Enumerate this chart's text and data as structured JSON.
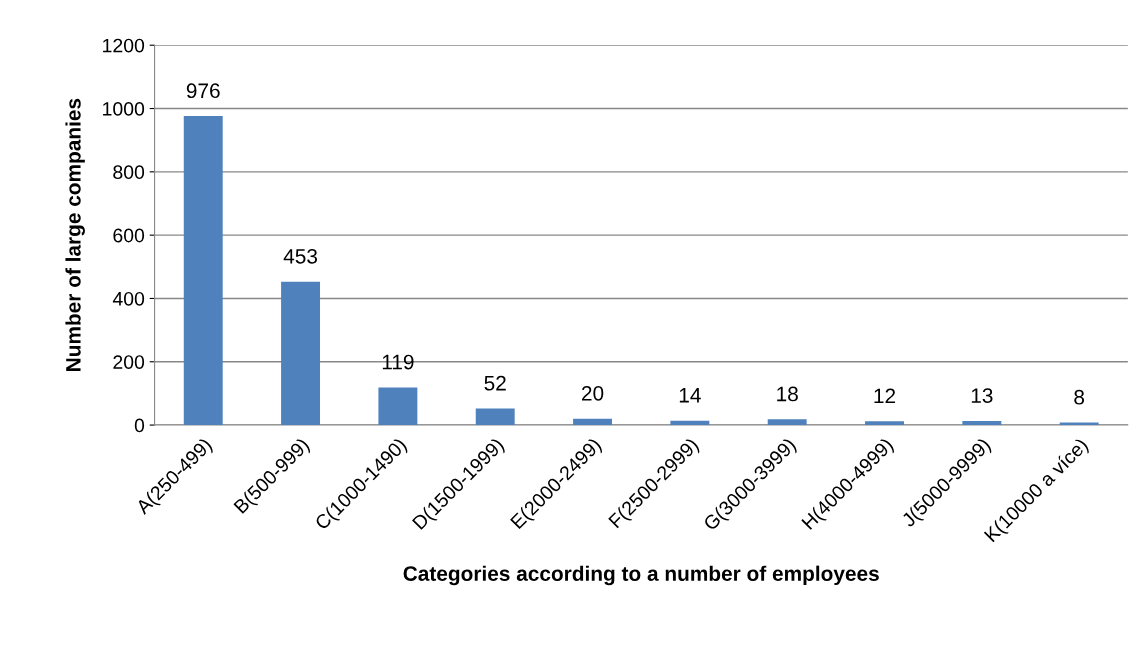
{
  "chart_data": {
    "type": "bar",
    "xlabel": "Categories according to a number of employees",
    "ylabel": "Number of large companies",
    "categories": [
      "A(250-499)",
      "B(500-999)",
      "C(1000-1490)",
      "D(1500-1999)",
      "E(2000-2499)",
      "F(2500-2999)",
      "G(3000-3999)",
      "H(4000-4999)",
      "J(5000-9999)",
      "K(10000 a více)"
    ],
    "values": [
      976,
      453,
      119,
      52,
      20,
      14,
      18,
      12,
      13,
      8
    ],
    "color": "#4f81bd",
    "ylim": [
      0,
      1200
    ],
    "yticks": [
      0,
      200,
      400,
      600,
      800,
      1000,
      1200
    ],
    "grid": "y",
    "data_labels": true
  }
}
